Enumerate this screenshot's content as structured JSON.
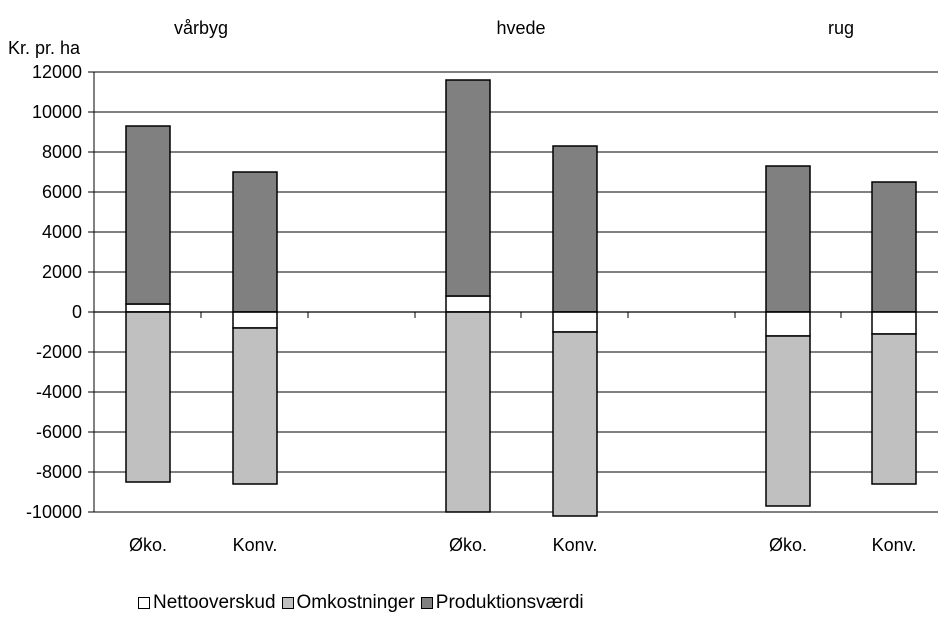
{
  "chart_data": {
    "type": "bar",
    "stacked": true,
    "ylabel": "Kr. pr. ha",
    "ylim": [
      -10000,
      12000
    ],
    "yticks": [
      12000,
      10000,
      8000,
      6000,
      4000,
      2000,
      0,
      -2000,
      -4000,
      -6000,
      -8000,
      -10000
    ],
    "groups": [
      "vårbyg",
      "hvede",
      "rug"
    ],
    "categories": [
      "Øko.",
      "Konv.",
      "Øko.",
      "Konv.",
      "Øko.",
      "Konv."
    ],
    "category_group": [
      0,
      0,
      1,
      1,
      2,
      2
    ],
    "series": [
      {
        "name": "Nettooverskud",
        "values": [
          400,
          -800,
          800,
          -1000,
          -1200,
          -1100
        ]
      },
      {
        "name": "Omkostninger",
        "values": [
          -8500,
          -7800,
          -10000,
          -9200,
          -8500,
          -7500
        ]
      },
      {
        "name": "Produktionsværdi",
        "values": [
          8900,
          7000,
          10800,
          8300,
          7300,
          6500
        ]
      }
    ],
    "grid": true,
    "legend_position": "bottom"
  },
  "colors": {
    "Nettooverskud": "#ffffff",
    "Omkostninger": "#c0c0c0",
    "Produktionsværdi": "#808080",
    "outline": "#000000"
  }
}
